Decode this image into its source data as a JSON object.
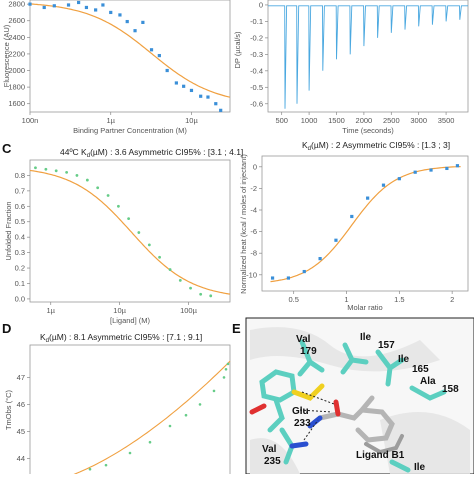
{
  "panel_letters": {
    "c": "C",
    "d": "D",
    "e": "E"
  },
  "chart_data": [
    {
      "type": "scatter",
      "panel": "A",
      "title": "",
      "xlabel": "Binding Partner Concentration (M)",
      "ylabel": "Fluorescence (AU)",
      "x_scale": "log",
      "xlim": [
        1e-07,
        3e-05
      ],
      "ylim": [
        1500,
        2850
      ],
      "x_ticks": [
        {
          "v": 1e-07,
          "label": "100n"
        },
        {
          "v": 1e-06,
          "label": "1µ"
        },
        {
          "v": 1e-05,
          "label": "10µ"
        }
      ],
      "y_ticks": [
        1600,
        1800,
        2000,
        2200,
        2400,
        2600,
        2800
      ],
      "colors": {
        "points": "#3a8fd8",
        "fit": "#f0a040"
      },
      "points": {
        "x": [
          1e-07,
          1.5e-07,
          2e-07,
          3e-07,
          4e-07,
          5e-07,
          6.5e-07,
          8e-07,
          1e-06,
          1.3e-06,
          1.6e-06,
          2e-06,
          2.5e-06,
          3.2e-06,
          4e-06,
          5e-06,
          6.5e-06,
          8e-06,
          1e-05,
          1.3e-05,
          1.6e-05,
          2e-05,
          2.3e-05
        ],
        "y": [
          2800,
          2760,
          2780,
          2790,
          2820,
          2760,
          2730,
          2790,
          2700,
          2670,
          2590,
          2480,
          2580,
          2250,
          2180,
          2000,
          1850,
          1810,
          1760,
          1690,
          1680,
          1600,
          1520
        ]
      },
      "fit": {
        "top": 2830,
        "bottom": 1580,
        "ec50": 3.2e-06,
        "hill": 1.1
      }
    },
    {
      "type": "line",
      "panel": "B",
      "title": "",
      "xlabel": "Time (seconds)",
      "ylabel": "DP (µcal/s)",
      "xlim": [
        250,
        3900
      ],
      "ylim": [
        -0.65,
        0.03
      ],
      "x_ticks": [
        500,
        1000,
        1500,
        2000,
        2500,
        3000,
        3500
      ],
      "y_ticks": [
        0,
        -0.1,
        -0.2,
        -0.3,
        -0.4,
        -0.5,
        -0.6
      ],
      "colors": {
        "line": "#4aa8e0"
      },
      "baseline": -0.005,
      "injections": [
        {
          "t": 560,
          "depth": -0.63
        },
        {
          "t": 780,
          "depth": -0.6
        },
        {
          "t": 1000,
          "depth": -0.52
        },
        {
          "t": 1250,
          "depth": -0.4
        },
        {
          "t": 1500,
          "depth": -0.33
        },
        {
          "t": 1750,
          "depth": -0.3
        },
        {
          "t": 2000,
          "depth": -0.25
        },
        {
          "t": 2250,
          "depth": -0.2
        },
        {
          "t": 2500,
          "depth": -0.17
        },
        {
          "t": 2750,
          "depth": -0.15
        },
        {
          "t": 3000,
          "depth": -0.13
        },
        {
          "t": 3250,
          "depth": -0.12
        },
        {
          "t": 3500,
          "depth": -0.1
        },
        {
          "t": 3750,
          "depth": -0.09
        }
      ]
    },
    {
      "type": "scatter",
      "panel": "C-left",
      "title": "44ºC K",
      "title_sub": "d",
      "title_rest": "(µM) : 3.6 Asymmetric CI95% : [3.1 ; 4.1]",
      "xlabel": "[Ligand] (M)",
      "ylabel": "Unfolded Fraction",
      "x_scale": "log",
      "xlim": [
        5e-07,
        0.0004
      ],
      "ylim": [
        -0.02,
        0.9
      ],
      "x_ticks": [
        {
          "v": 1e-06,
          "label": "1µ"
        },
        {
          "v": 1e-05,
          "label": "10µ"
        },
        {
          "v": 0.0001,
          "label": "100µ"
        }
      ],
      "y_ticks": [
        0,
        0.1,
        0.2,
        0.3,
        0.4,
        0.5,
        0.6,
        0.7,
        0.8
      ],
      "colors": {
        "points": "#66cc88",
        "fit": "#f0a040"
      },
      "points": {
        "x": [
          6e-07,
          8.5e-07,
          1.2e-06,
          1.7e-06,
          2.4e-06,
          3.4e-06,
          4.8e-06,
          6.8e-06,
          9.6e-06,
          1.35e-05,
          1.9e-05,
          2.7e-05,
          3.8e-05,
          5.4e-05,
          7.6e-05,
          0.000107,
          0.00015,
          0.00021
        ],
        "y": [
          0.85,
          0.84,
          0.83,
          0.82,
          0.8,
          0.77,
          0.72,
          0.67,
          0.6,
          0.52,
          0.43,
          0.35,
          0.27,
          0.19,
          0.12,
          0.07,
          0.03,
          0.02
        ]
      },
      "fit": {
        "top": 0.86,
        "bottom": 0.0,
        "ec50": 1.5e-05,
        "hill": 1.0
      }
    },
    {
      "type": "scatter",
      "panel": "C-right",
      "title": "K",
      "title_sub": "d",
      "title_rest": "(µM) : 2 Asymmetric CI95% : [1.3 ; 3]",
      "xlabel": "Molar ratio",
      "ylabel": "Normalized heat (kcal / moles of injectant)",
      "xlim": [
        0.2,
        2.15
      ],
      "ylim": [
        -11.5,
        1
      ],
      "x_ticks": [
        0.5,
        1,
        1.5,
        2
      ],
      "y_ticks": [
        0,
        -2,
        -4,
        -6,
        -8,
        -10
      ],
      "colors": {
        "points": "#3a8fd8",
        "fit": "#f0a040"
      },
      "points": {
        "x": [
          0.3,
          0.45,
          0.6,
          0.75,
          0.9,
          1.05,
          1.2,
          1.35,
          1.5,
          1.65,
          1.8,
          1.95,
          2.05
        ],
        "y": [
          -10.3,
          -10.3,
          -9.7,
          -8.5,
          -6.8,
          -4.6,
          -2.9,
          -1.7,
          -1.1,
          -0.5,
          -0.3,
          -0.15,
          0.1
        ]
      },
      "fit": {
        "low": -10.9,
        "high": 0.1,
        "mid": 1.05,
        "k": 4.8
      }
    },
    {
      "type": "scatter",
      "panel": "D",
      "title": "K",
      "title_sub": "d",
      "title_rest": "(µM) : 8.1 Asymmetric CI95% : [7.1 ; 9.1]",
      "xlabel": "",
      "ylabel": "TmObs (°C)",
      "xlim": [
        0,
        1
      ],
      "ylim": [
        43.2,
        48.2
      ],
      "y_ticks": [
        44,
        45,
        46,
        47
      ],
      "colors": {
        "points": "#66cc88",
        "fit": "#f0a040"
      },
      "points": {
        "x": [
          0.08,
          0.18,
          0.3,
          0.38,
          0.5,
          0.6,
          0.7,
          0.78,
          0.85,
          0.92,
          0.97,
          0.98,
          0.99
        ],
        "y": [
          43.15,
          43.3,
          43.6,
          43.75,
          44.2,
          44.6,
          45.2,
          45.6,
          46.0,
          46.5,
          47.0,
          47.3,
          47.5
        ]
      }
    }
  ],
  "structure_panel": {
    "residues": [
      {
        "name": "Val",
        "num": "179"
      },
      {
        "name": "Ile",
        "num": "157"
      },
      {
        "name": "Ile",
        "num": "165"
      },
      {
        "name": "Ala",
        "num": "158"
      },
      {
        "name": "Glu",
        "num": "233"
      },
      {
        "name": "Val",
        "num": "235"
      },
      {
        "name": "Ile",
        "num": ""
      }
    ],
    "ligand_label": "Ligand B1",
    "colors": {
      "carbon": "#5ccfc0",
      "ligand": "#b5b5b5",
      "oxygen": "#e03030",
      "nitrogen": "#2a4fd0",
      "sulfur": "#f0d020",
      "backdrop": "#ececec"
    }
  }
}
